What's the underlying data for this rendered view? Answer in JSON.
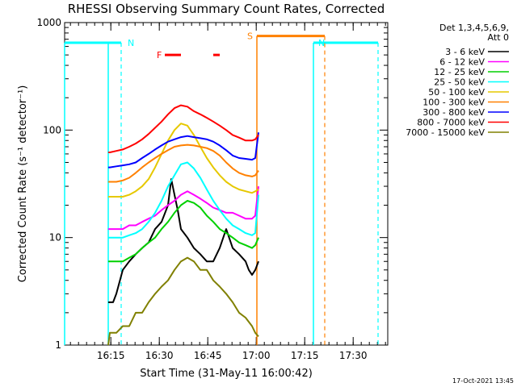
{
  "chart_data": {
    "type": "line",
    "title": "RHESSI Observing Summary Count Rates, Corrected",
    "xlabel": "Start Time (31-May-11 16:00:42)",
    "ylabel": "Corrected Count Rate (s⁻¹ detector⁻¹)",
    "yscale": "log",
    "ylim": [
      1,
      1000
    ],
    "xlim_minutes": [
      0,
      100
    ],
    "x_unit": "minutes after 16:00:42",
    "x_ticks": [
      {
        "label": "16:15",
        "minutes": 14.3
      },
      {
        "label": "16:30",
        "minutes": 29.3
      },
      {
        "label": "16:45",
        "minutes": 44.3
      },
      {
        "label": "17:00",
        "minutes": 59.3
      },
      {
        "label": "17:15",
        "minutes": 74.3
      },
      {
        "label": "17:30",
        "minutes": 89.3
      }
    ],
    "y_ticks": [
      {
        "label": "1",
        "value": 1
      },
      {
        "label": "10",
        "value": 10
      },
      {
        "label": "100",
        "value": 100
      },
      {
        "label": "1000",
        "value": 1000
      }
    ],
    "legend": {
      "placement": "right",
      "header": [
        "Det 1,3,4,5,6,9,",
        "Att 0"
      ]
    },
    "series": [
      {
        "name": "3 - 6 keV",
        "color": "#000000",
        "x": [
          13.5,
          14,
          15,
          16,
          18,
          20,
          22,
          24,
          26,
          28,
          30,
          32,
          33,
          34,
          35,
          36,
          38,
          40,
          42,
          44,
          46,
          48,
          50,
          52,
          54,
          56,
          57,
          58,
          59,
          60
        ],
        "y": [
          2.5,
          2.5,
          2.5,
          3,
          5,
          6,
          7,
          8,
          9,
          12,
          14,
          20,
          35,
          25,
          18,
          12,
          10,
          8,
          7,
          6,
          6,
          8,
          12,
          8,
          7,
          6,
          5,
          4.5,
          5,
          6
        ]
      },
      {
        "name": "6 - 12 keV",
        "color": "#ff00ff",
        "x": [
          13.5,
          14,
          16,
          18,
          20,
          22,
          24,
          26,
          28,
          30,
          32,
          34,
          36,
          38,
          40,
          42,
          44,
          46,
          48,
          50,
          52,
          54,
          56,
          58,
          59,
          60
        ],
        "y": [
          12,
          12,
          12,
          12,
          13,
          13,
          14,
          15,
          16,
          18,
          20,
          22,
          25,
          27,
          25,
          23,
          21,
          19,
          18,
          17,
          17,
          16,
          15,
          15,
          16,
          30
        ]
      },
      {
        "name": "12 - 25 keV",
        "color": "#00d000",
        "x": [
          13.5,
          14,
          16,
          18,
          20,
          22,
          24,
          26,
          28,
          30,
          32,
          34,
          36,
          38,
          40,
          42,
          44,
          46,
          48,
          50,
          52,
          54,
          56,
          58,
          59,
          60
        ],
        "y": [
          6,
          6,
          6,
          6,
          6.5,
          7,
          8,
          9,
          10,
          12,
          14,
          17,
          20,
          22,
          21,
          19,
          16,
          14,
          12,
          11,
          10,
          9,
          8.5,
          8,
          8.5,
          10
        ]
      },
      {
        "name": "25 - 50 keV",
        "color": "#00ffff",
        "x": [
          13.5,
          14,
          16,
          18,
          20,
          22,
          24,
          26,
          28,
          30,
          32,
          34,
          36,
          38,
          40,
          42,
          44,
          46,
          48,
          50,
          52,
          54,
          56,
          58,
          59,
          60
        ],
        "y": [
          10,
          10,
          10,
          10,
          10.5,
          11,
          12,
          14,
          17,
          22,
          30,
          38,
          48,
          50,
          44,
          36,
          28,
          22,
          18,
          15,
          13,
          12,
          11,
          10.5,
          11,
          25
        ]
      },
      {
        "name": "50 - 100 keV",
        "color": "#e6c800",
        "x": [
          13.5,
          14,
          16,
          18,
          20,
          22,
          24,
          26,
          28,
          30,
          32,
          34,
          36,
          38,
          40,
          42,
          44,
          46,
          48,
          50,
          52,
          54,
          56,
          58,
          59,
          60
        ],
        "y": [
          24,
          24,
          24,
          24,
          25,
          27,
          30,
          35,
          45,
          60,
          80,
          100,
          115,
          110,
          90,
          70,
          55,
          45,
          38,
          33,
          30,
          28,
          27,
          26,
          27,
          28
        ]
      },
      {
        "name": "100 - 300 keV",
        "color": "#ff8000",
        "x": [
          13.5,
          14,
          16,
          18,
          20,
          22,
          24,
          26,
          28,
          30,
          32,
          34,
          36,
          38,
          40,
          42,
          44,
          46,
          48,
          50,
          52,
          54,
          56,
          58,
          59,
          60
        ],
        "y": [
          33,
          33,
          33,
          34,
          36,
          40,
          45,
          50,
          55,
          60,
          65,
          70,
          72,
          73,
          72,
          70,
          68,
          64,
          58,
          50,
          44,
          40,
          38,
          37,
          38,
          42
        ]
      },
      {
        "name": "300 - 800 keV",
        "color": "#0000ff",
        "x": [
          13.5,
          14,
          16,
          18,
          20,
          22,
          24,
          26,
          28,
          30,
          32,
          34,
          36,
          38,
          40,
          42,
          44,
          46,
          48,
          50,
          52,
          54,
          56,
          58,
          59,
          60
        ],
        "y": [
          45,
          45,
          46,
          47,
          48,
          50,
          55,
          60,
          66,
          72,
          78,
          82,
          86,
          88,
          86,
          84,
          82,
          78,
          72,
          65,
          58,
          55,
          54,
          53,
          55,
          95
        ]
      },
      {
        "name": "800 - 7000 keV",
        "color": "#ff0000",
        "x": [
          13.5,
          14,
          16,
          18,
          20,
          22,
          24,
          26,
          28,
          30,
          32,
          34,
          36,
          38,
          40,
          42,
          44,
          46,
          48,
          50,
          52,
          54,
          56,
          58,
          59,
          60
        ],
        "y": [
          62,
          62,
          64,
          66,
          70,
          75,
          82,
          92,
          105,
          120,
          140,
          160,
          170,
          165,
          150,
          140,
          130,
          120,
          110,
          100,
          90,
          85,
          80,
          80,
          82,
          90
        ]
      },
      {
        "name": "7000 - 15000 keV",
        "color": "#808000",
        "x": [
          13.5,
          14,
          16,
          18,
          20,
          22,
          24,
          26,
          28,
          30,
          32,
          34,
          36,
          38,
          40,
          42,
          44,
          46,
          48,
          50,
          52,
          54,
          56,
          58,
          59,
          60
        ],
        "y": [
          1,
          1.3,
          1.3,
          1.5,
          1.5,
          2,
          2,
          2.5,
          3,
          3.5,
          4,
          5,
          6,
          6.5,
          6,
          5,
          5,
          4,
          3.5,
          3,
          2.5,
          2,
          1.8,
          1.5,
          1.3,
          1.2
        ]
      }
    ],
    "annotations": [
      {
        "label": "N",
        "color": "#00ffff",
        "level": 650,
        "start": 0,
        "end": 17.5,
        "dashed_at": 17.5
      },
      {
        "label": "N",
        "color": "#00ffff",
        "level": 650,
        "start": 77,
        "end": 97,
        "dashed_at": 97
      },
      {
        "label": "S",
        "color": "#ff8000",
        "level": 750,
        "start": 59.5,
        "end": 80.5,
        "dashed_at": 80.5
      },
      {
        "label": "F",
        "color": "#ff0000",
        "level": 500,
        "segments": [
          [
            31,
            36
          ],
          [
            46,
            48
          ]
        ]
      }
    ],
    "cyan_boundaries": [
      0,
      13.5,
      77
    ],
    "orange_boundaries": [
      59.5
    ]
  },
  "footer": {
    "timestamp": "17-Oct-2021 13:45"
  }
}
